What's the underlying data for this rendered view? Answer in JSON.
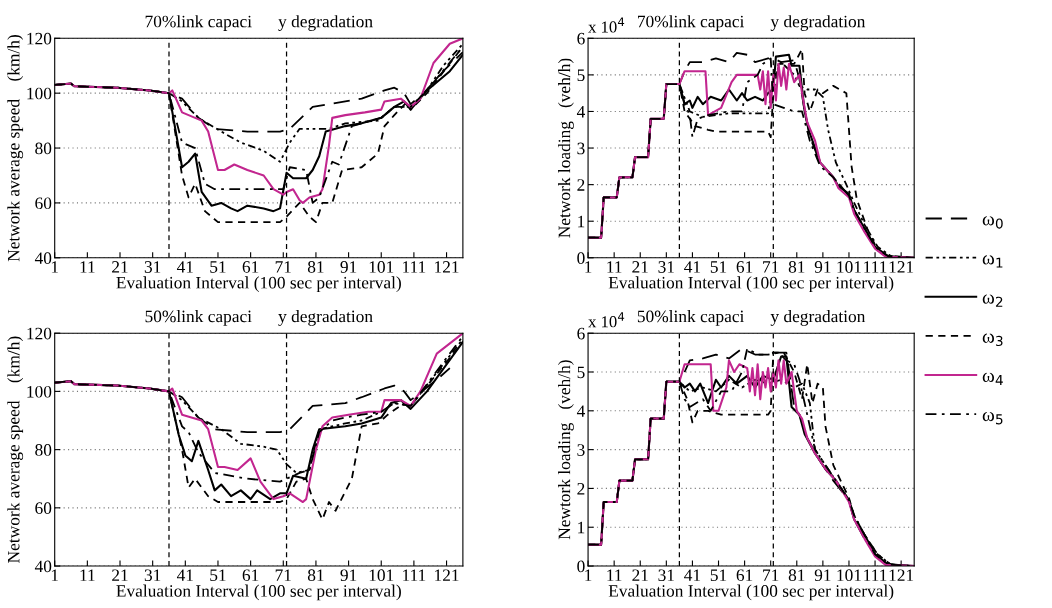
{
  "chart_data": [
    {
      "type": "line",
      "title": "70%link capaci      y degradation",
      "xlabel": "Evaluation Interval (100 sec per interval)",
      "ylabel": "Network average speed    (km/h)",
      "xlim": [
        1,
        126
      ],
      "xticks": [
        1,
        11,
        21,
        31,
        41,
        51,
        61,
        71,
        81,
        91,
        101,
        111,
        121
      ],
      "ylim": [
        40,
        120
      ],
      "yticks": [
        40,
        60,
        80,
        100,
        120
      ],
      "grid": "y",
      "legend": false,
      "ref_lines": [
        {
          "axis": "x",
          "value": 36,
          "color": "#000000",
          "line_style": "dashed"
        },
        {
          "axis": "x",
          "value": 72,
          "color": "#000000",
          "line_style": "dashed"
        }
      ],
      "series": [
        {
          "color": "#000000",
          "line_style": "longdash",
          "x": [
            1,
            6,
            7,
            20,
            30,
            36,
            40,
            45,
            50,
            60,
            70,
            73,
            80,
            90,
            95,
            102,
            105,
            108,
            110,
            114,
            120,
            126
          ],
          "values": [
            103,
            103.5,
            102.5,
            102,
            101,
            100,
            98,
            91,
            87,
            86,
            86,
            87,
            95,
            97,
            98,
            101,
            102,
            100,
            96,
            100,
            108,
            115
          ]
        },
        {
          "color": "#000000",
          "line_style": "dashdotdot",
          "x": [
            1,
            6,
            7,
            20,
            30,
            36,
            40,
            45,
            52,
            58,
            65,
            70,
            73,
            76,
            85,
            90,
            100,
            105,
            110,
            115,
            120,
            126
          ],
          "values": [
            103,
            103.5,
            102.5,
            102,
            101,
            100,
            97,
            91,
            86,
            82,
            79,
            75,
            82,
            87,
            87,
            89,
            90,
            95,
            95,
            101,
            110,
            118
          ]
        },
        {
          "color": "#000000",
          "line_style": "solid",
          "x": [
            1,
            6,
            7,
            20,
            30,
            36,
            40,
            42,
            44,
            46,
            49,
            52,
            55,
            57,
            60,
            65,
            68,
            70,
            72,
            74,
            78,
            80,
            82,
            84,
            90,
            95,
            101,
            105,
            108,
            110,
            115,
            122,
            126
          ],
          "values": [
            103,
            103.5,
            102.5,
            102,
            101,
            100,
            73,
            75,
            78,
            64,
            59,
            60,
            58,
            57,
            59,
            58,
            57,
            58,
            71,
            69,
            69,
            72,
            77,
            86,
            88,
            89,
            91,
            95,
            97,
            94,
            101,
            108,
            114
          ]
        },
        {
          "color": "#000000",
          "line_style": "dashed",
          "x": [
            1,
            6,
            7,
            20,
            30,
            36,
            40,
            42,
            44,
            47,
            51,
            70,
            72,
            76,
            79,
            81,
            83,
            86,
            89,
            95,
            100,
            102,
            105,
            109,
            110,
            115,
            126
          ],
          "values": [
            103,
            103.5,
            102.5,
            102,
            101,
            100,
            70,
            62,
            67,
            57,
            53,
            53,
            55,
            60,
            55,
            53,
            60,
            60,
            72,
            73,
            78,
            88,
            92,
            97,
            94,
            100,
            117
          ]
        },
        {
          "color": "#c2268f",
          "line_style": "solid",
          "x": [
            1,
            6,
            7,
            20,
            30,
            36,
            37,
            40,
            46,
            48,
            51,
            53,
            56,
            60,
            65,
            68,
            71,
            72,
            74,
            76,
            77,
            79,
            82,
            83,
            85,
            86,
            90,
            96,
            101,
            102,
            107,
            110,
            113,
            117,
            122,
            126
          ],
          "values": [
            103,
            103.5,
            102.5,
            102,
            101,
            100,
            101,
            93,
            90,
            86,
            72,
            72,
            74,
            72,
            70,
            65,
            63,
            64,
            65,
            61,
            60,
            62,
            63,
            65,
            81,
            91,
            92,
            93,
            94,
            97,
            98,
            95,
            98,
            111,
            118,
            120
          ]
        },
        {
          "color": "#000000",
          "line_style": "dashdot",
          "x": [
            1,
            6,
            7,
            20,
            30,
            36,
            40,
            44,
            47,
            50,
            71,
            73,
            78,
            80,
            82,
            86,
            88,
            92,
            101,
            105,
            110,
            115,
            126
          ],
          "values": [
            103,
            103.5,
            102.5,
            102,
            101,
            100,
            82,
            80,
            67,
            65,
            65,
            73,
            72,
            60,
            62,
            75,
            74,
            88,
            91,
            95,
            95,
            101,
            117
          ]
        }
      ]
    },
    {
      "type": "line",
      "title": "70%link capaci      y degradation",
      "xlabel": "Evaluation Interval (100 sec per interval)",
      "ylabel": "Network loading   (veh/h)",
      "annotations": [
        "x 10$^{4}$"
      ],
      "xlim": [
        1,
        126
      ],
      "xticks": [
        1,
        11,
        21,
        31,
        41,
        51,
        61,
        71,
        81,
        91,
        101,
        111,
        121
      ],
      "ylim": [
        0,
        6
      ],
      "yticks": [
        0,
        1,
        2,
        3,
        4,
        5,
        6
      ],
      "grid": "y",
      "legend": "right",
      "ref_lines": [
        {
          "axis": "x",
          "value": 36,
          "color": "#000000",
          "line_style": "dashed"
        },
        {
          "axis": "x",
          "value": 72,
          "color": "#000000",
          "line_style": "dashed"
        }
      ],
      "series": [
        {
          "name": "ω$_{0}$",
          "color": "#000000",
          "line_style": "longdash",
          "x": [
            1,
            6,
            7,
            12,
            13,
            18,
            19,
            24,
            25,
            30,
            31,
            36,
            38,
            40,
            45,
            50,
            55,
            58,
            62,
            65,
            70,
            72,
            75,
            80,
            82,
            84,
            86,
            90,
            95,
            101,
            103,
            107,
            111,
            116,
            126
          ],
          "values": [
            0.55,
            0.55,
            1.65,
            1.65,
            2.2,
            2.2,
            2.75,
            2.75,
            3.8,
            3.8,
            4.75,
            4.75,
            5.1,
            5.35,
            5.35,
            5.45,
            5.35,
            5.6,
            5.55,
            5.35,
            5.45,
            5.45,
            5.35,
            5.4,
            4.9,
            4.0,
            3.3,
            2.6,
            2.2,
            1.7,
            1.3,
            0.8,
            0.3,
            0.05,
            0
          ]
        },
        {
          "name": "ω$_{1}$",
          "color": "#000000",
          "line_style": "dashdotdot",
          "x": [
            1,
            6,
            7,
            12,
            13,
            18,
            19,
            24,
            25,
            30,
            31,
            36,
            40,
            45,
            55,
            70,
            72,
            75,
            80,
            82,
            85,
            88,
            91,
            93,
            96,
            100,
            103,
            107,
            112,
            117,
            126
          ],
          "values": [
            0.55,
            0.55,
            1.65,
            1.65,
            2.2,
            2.2,
            2.75,
            2.75,
            3.8,
            3.8,
            4.75,
            4.75,
            4.0,
            3.85,
            3.95,
            3.95,
            4.9,
            5.35,
            5.0,
            4.7,
            4.6,
            4.6,
            4.4,
            3.5,
            2.6,
            2.0,
            1.5,
            0.9,
            0.3,
            0.05,
            0
          ]
        },
        {
          "name": "ω$_{2}$",
          "color": "#000000",
          "line_style": "solid",
          "x": [
            1,
            6,
            7,
            12,
            13,
            18,
            19,
            24,
            25,
            30,
            31,
            36,
            38,
            40,
            41,
            43,
            45,
            48,
            52,
            55,
            58,
            60,
            62,
            65,
            68,
            70,
            72,
            73,
            78,
            79,
            82,
            84,
            86,
            90,
            95,
            97,
            101,
            103,
            107,
            111,
            115,
            126
          ],
          "values": [
            0.55,
            0.55,
            1.65,
            1.65,
            2.2,
            2.2,
            2.75,
            2.75,
            3.8,
            3.8,
            4.75,
            4.75,
            4.2,
            4.3,
            4.1,
            4.4,
            4.2,
            4.4,
            4.3,
            4.6,
            4.3,
            4.5,
            4.3,
            4.4,
            4.3,
            4.5,
            4.6,
            5.5,
            5.55,
            5.25,
            5.25,
            4.0,
            3.4,
            2.6,
            2.2,
            1.95,
            1.75,
            1.3,
            0.8,
            0.3,
            0.05,
            0
          ]
        },
        {
          "name": "ω$_{3}$",
          "color": "#000000",
          "line_style": "dashed",
          "x": [
            1,
            6,
            7,
            12,
            13,
            18,
            19,
            24,
            25,
            30,
            31,
            36,
            38,
            42,
            47,
            50,
            70,
            71,
            72,
            74,
            80,
            83,
            84,
            86,
            89,
            91,
            95,
            100,
            102,
            104,
            108,
            112,
            118,
            126
          ],
          "values": [
            0.55,
            0.55,
            1.65,
            1.65,
            2.2,
            2.2,
            2.75,
            2.75,
            3.8,
            3.8,
            4.75,
            4.75,
            4.0,
            3.6,
            3.5,
            3.45,
            3.45,
            3.3,
            4.5,
            5.3,
            5.3,
            5.7,
            4.5,
            4.0,
            4.6,
            4.5,
            4.7,
            4.5,
            2.5,
            1.6,
            0.8,
            0.2,
            0.02,
            0
          ]
        },
        {
          "name": "ω$_{4}$",
          "color": "#c2268f",
          "line_style": "solid",
          "x": [
            1,
            6,
            7,
            12,
            13,
            18,
            19,
            24,
            25,
            30,
            31,
            36,
            38,
            46,
            47,
            52,
            56,
            58,
            66,
            67,
            68,
            69,
            70,
            71,
            72,
            73,
            74,
            75,
            76,
            77,
            78,
            80,
            82,
            83,
            85,
            88,
            90,
            95,
            97,
            101,
            103,
            107,
            111,
            115,
            126
          ],
          "values": [
            0.55,
            0.55,
            1.65,
            1.65,
            2.2,
            2.2,
            2.75,
            2.75,
            3.8,
            3.8,
            4.75,
            4.75,
            5.1,
            5.1,
            3.9,
            4.1,
            4.8,
            5.0,
            5.0,
            4.6,
            5.1,
            4.2,
            5.1,
            4.1,
            5.0,
            4.3,
            5.3,
            4.7,
            5.2,
            4.6,
            5.3,
            4.8,
            5.0,
            4.5,
            3.7,
            3.2,
            2.6,
            2.2,
            1.9,
            1.65,
            1.2,
            0.7,
            0.25,
            0.03,
            0
          ]
        },
        {
          "name": "ω$_{5}$",
          "color": "#000000",
          "line_style": "dashdot",
          "x": [
            1,
            6,
            7,
            12,
            13,
            18,
            19,
            24,
            25,
            30,
            31,
            36,
            38,
            40,
            41,
            43,
            47,
            55,
            60,
            62,
            66,
            68,
            71,
            72,
            76,
            80,
            83,
            86,
            90,
            95,
            101,
            103,
            107,
            111,
            116,
            126
          ],
          "values": [
            0.55,
            0.55,
            1.65,
            1.65,
            2.2,
            2.2,
            2.75,
            2.75,
            3.8,
            3.8,
            4.75,
            4.75,
            4.2,
            3.9,
            3.3,
            3.8,
            3.9,
            4.0,
            4.0,
            4.8,
            5.0,
            5.3,
            5.45,
            4.2,
            4.1,
            4.0,
            4.0,
            3.2,
            2.5,
            2.2,
            1.7,
            1.3,
            0.8,
            0.3,
            0.04,
            0
          ]
        }
      ]
    },
    {
      "type": "line",
      "title": "50%link capaci      y degradation",
      "xlabel": "Evaluation Interval (100 sec per interval)",
      "ylabel": "Network average speed    (km/h)",
      "xlim": [
        1,
        126
      ],
      "xticks": [
        1,
        11,
        21,
        31,
        41,
        51,
        61,
        71,
        81,
        91,
        101,
        111,
        121
      ],
      "ylim": [
        40,
        120
      ],
      "yticks": [
        40,
        60,
        80,
        100,
        120
      ],
      "grid": "y",
      "legend": false,
      "ref_lines": [
        {
          "axis": "x",
          "value": 36,
          "color": "#000000",
          "line_style": "dashed"
        },
        {
          "axis": "x",
          "value": 72,
          "color": "#000000",
          "line_style": "dashed"
        }
      ],
      "series": [
        {
          "color": "#000000",
          "line_style": "longdash",
          "x": [
            1,
            6,
            7,
            20,
            30,
            36,
            40,
            45,
            50,
            60,
            70,
            73,
            80,
            90,
            95,
            102,
            105,
            108,
            110,
            118,
            122
          ],
          "values": [
            103,
            103.5,
            102.5,
            102,
            101,
            100,
            98,
            91,
            87,
            86,
            86,
            87,
            95,
            96,
            98,
            101,
            102,
            100,
            97,
            104,
            108
          ]
        },
        {
          "color": "#000000",
          "line_style": "dashdotdot",
          "x": [
            1,
            6,
            7,
            20,
            30,
            36,
            40,
            45,
            52,
            58,
            65,
            69,
            72,
            75,
            79,
            82,
            90,
            95,
            101,
            105,
            110,
            126
          ],
          "values": [
            103,
            103.5,
            102.5,
            102,
            101,
            100,
            97,
            91,
            87,
            82,
            81,
            80,
            75,
            72,
            73,
            87,
            89,
            90,
            93,
            96,
            95,
            118
          ]
        },
        {
          "color": "#000000",
          "line_style": "solid",
          "x": [
            1,
            6,
            7,
            20,
            30,
            36,
            39,
            41,
            43,
            45,
            48,
            50,
            52,
            55,
            58,
            61,
            63,
            67,
            70,
            72,
            74,
            78,
            80,
            82,
            90,
            95,
            101,
            104,
            107,
            110,
            115,
            126
          ],
          "values": [
            103,
            103.5,
            102.5,
            102,
            101,
            100,
            85,
            78,
            76,
            83,
            73,
            66,
            68,
            64,
            66,
            63,
            66,
            63,
            65,
            65,
            71,
            70,
            80,
            87,
            88,
            89,
            91,
            96,
            97,
            94,
            100,
            117
          ]
        },
        {
          "color": "#000000",
          "line_style": "dashed",
          "x": [
            1,
            6,
            7,
            20,
            30,
            36,
            40,
            42,
            44,
            48,
            51,
            70,
            72,
            75,
            78,
            80,
            83,
            85,
            87,
            92,
            95,
            100,
            103,
            108,
            110,
            126
          ],
          "values": [
            103,
            103.5,
            102.5,
            102,
            101,
            100,
            80,
            67,
            70,
            64,
            62,
            62,
            63,
            69,
            70,
            63,
            56,
            62,
            59,
            70,
            88,
            89,
            92,
            96,
            95,
            117
          ]
        },
        {
          "color": "#c2268f",
          "line_style": "solid",
          "x": [
            1,
            6,
            7,
            20,
            30,
            36,
            37,
            40,
            46,
            48,
            51,
            53,
            57,
            61,
            64,
            68,
            71,
            73,
            77,
            78,
            81,
            83,
            86,
            91,
            97,
            101,
            102,
            107,
            110,
            113,
            118,
            126
          ],
          "values": [
            103,
            103.5,
            102.5,
            102,
            101,
            100,
            101,
            92,
            90,
            87,
            74,
            74,
            73,
            77,
            69,
            63,
            64,
            65,
            62,
            63,
            80,
            88,
            91,
            92,
            93,
            93,
            97,
            97,
            95,
            100,
            113,
            120
          ]
        },
        {
          "color": "#000000",
          "line_style": "dashdot",
          "x": [
            1,
            6,
            7,
            20,
            30,
            36,
            40,
            42,
            45,
            50,
            60,
            70,
            72,
            76,
            79,
            82,
            86,
            90,
            95,
            101,
            105,
            110,
            126
          ],
          "values": [
            103,
            103.5,
            102.5,
            102,
            101,
            100,
            88,
            86,
            79,
            72,
            70,
            69,
            70,
            72,
            73,
            86,
            90,
            91,
            92,
            93,
            96,
            95,
            119
          ]
        }
      ]
    },
    {
      "type": "line",
      "title": "50%link capaci      y degradation",
      "xlabel": "Evaluation Interval (100 sec per interval)",
      "ylabel": "Newtork loading   (veh/h)",
      "annotations": [
        "x 10$^{4}$"
      ],
      "xlim": [
        1,
        126
      ],
      "xticks": [
        1,
        11,
        21,
        31,
        41,
        51,
        61,
        71,
        81,
        91,
        101,
        111,
        121
      ],
      "ylim": [
        0,
        6
      ],
      "yticks": [
        0,
        1,
        2,
        3,
        4,
        5,
        6
      ],
      "grid": "y",
      "legend": false,
      "ref_lines": [
        {
          "axis": "x",
          "value": 36,
          "color": "#000000",
          "line_style": "dashed"
        },
        {
          "axis": "x",
          "value": 72,
          "color": "#000000",
          "line_style": "dashed"
        }
      ],
      "series": [
        {
          "color": "#000000",
          "line_style": "longdash",
          "x": [
            1,
            6,
            7,
            12,
            13,
            18,
            19,
            24,
            25,
            30,
            31,
            36,
            38,
            40,
            45,
            50,
            55,
            60,
            65,
            70,
            72,
            77,
            80,
            82,
            85,
            90,
            95,
            101,
            103,
            107,
            111,
            116,
            126
          ],
          "values": [
            0.55,
            0.55,
            1.65,
            1.65,
            2.2,
            2.2,
            2.75,
            2.75,
            3.8,
            3.8,
            4.75,
            4.75,
            5.0,
            5.3,
            5.35,
            5.45,
            5.35,
            5.6,
            5.45,
            5.45,
            5.5,
            5.5,
            4.1,
            3.9,
            3.3,
            2.7,
            2.2,
            1.7,
            1.2,
            0.7,
            0.3,
            0.05,
            0
          ]
        },
        {
          "color": "#000000",
          "line_style": "dashdotdot",
          "x": [
            1,
            6,
            7,
            12,
            13,
            18,
            19,
            24,
            25,
            30,
            31,
            36,
            40,
            45,
            50,
            55,
            60,
            65,
            70,
            75,
            80,
            83,
            86,
            88,
            92,
            96,
            101,
            103,
            107,
            112,
            117,
            126
          ],
          "values": [
            0.55,
            0.55,
            1.65,
            1.65,
            2.2,
            2.2,
            2.75,
            2.75,
            3.8,
            3.8,
            4.75,
            4.75,
            4.5,
            4.6,
            4.5,
            4.8,
            4.6,
            4.8,
            4.7,
            4.8,
            4.6,
            4.7,
            4.2,
            3.0,
            2.6,
            2.2,
            1.7,
            1.3,
            0.8,
            0.3,
            0.04,
            0
          ]
        },
        {
          "color": "#000000",
          "line_style": "solid",
          "x": [
            1,
            6,
            7,
            12,
            13,
            18,
            19,
            24,
            25,
            30,
            31,
            36,
            38,
            40,
            42,
            44,
            47,
            50,
            52,
            55,
            58,
            62,
            65,
            68,
            72,
            75,
            77,
            79,
            82,
            84,
            88,
            92,
            96,
            101,
            103,
            107,
            111,
            116,
            126
          ],
          "values": [
            0.55,
            0.55,
            1.65,
            1.65,
            2.2,
            2.2,
            2.75,
            2.75,
            3.8,
            3.8,
            4.75,
            4.75,
            4.6,
            4.7,
            4.5,
            4.7,
            4.2,
            4.8,
            4.6,
            4.9,
            4.7,
            4.9,
            4.6,
            4.9,
            4.8,
            5.4,
            5.4,
            4.1,
            3.9,
            3.4,
            2.9,
            2.5,
            2.2,
            1.7,
            1.2,
            0.8,
            0.3,
            0.04,
            0
          ]
        },
        {
          "color": "#000000",
          "line_style": "dashed",
          "x": [
            1,
            6,
            7,
            12,
            13,
            18,
            19,
            24,
            25,
            30,
            31,
            36,
            39,
            41,
            43,
            47,
            52,
            60,
            70,
            71,
            72,
            76,
            80,
            83,
            85,
            87,
            89,
            91,
            92,
            95,
            101,
            103,
            107,
            112,
            117,
            126
          ],
          "values": [
            0.55,
            0.55,
            1.65,
            1.65,
            2.2,
            2.2,
            2.75,
            2.75,
            3.8,
            3.8,
            4.75,
            4.75,
            4.3,
            3.7,
            4.0,
            4.0,
            3.9,
            3.9,
            3.9,
            4.0,
            5.5,
            5.5,
            5.0,
            4.3,
            5.2,
            4.2,
            4.7,
            4.6,
            3.6,
            2.6,
            1.75,
            1.3,
            0.8,
            0.3,
            0.04,
            0
          ]
        },
        {
          "color": "#c2268f",
          "line_style": "solid",
          "x": [
            1,
            6,
            7,
            12,
            13,
            18,
            19,
            24,
            25,
            30,
            31,
            36,
            38,
            48,
            49,
            51,
            54,
            55,
            57,
            59,
            62,
            63,
            64,
            65,
            66,
            67,
            68,
            69,
            70,
            71,
            72,
            73,
            74,
            75,
            76,
            77,
            79,
            81,
            83,
            85,
            88,
            92,
            96,
            101,
            103,
            107,
            111,
            115,
            126
          ],
          "values": [
            0.55,
            0.55,
            1.65,
            1.65,
            2.2,
            2.2,
            2.75,
            2.75,
            3.8,
            3.8,
            4.75,
            4.75,
            5.2,
            5.2,
            4.0,
            4.0,
            4.6,
            5.3,
            5.0,
            5.2,
            5.1,
            4.5,
            5.1,
            4.4,
            5.2,
            4.3,
            5.0,
            4.6,
            5.1,
            4.5,
            5.0,
            4.6,
            5.3,
            4.7,
            5.3,
            4.7,
            5.0,
            4.0,
            3.8,
            3.3,
            2.9,
            2.5,
            2.2,
            1.65,
            1.2,
            0.7,
            0.25,
            0.03,
            0
          ]
        },
        {
          "color": "#000000",
          "line_style": "dashdot",
          "x": [
            1,
            6,
            7,
            12,
            13,
            18,
            19,
            24,
            25,
            30,
            31,
            36,
            38,
            40,
            45,
            48,
            52,
            56,
            60,
            62,
            66,
            70,
            74,
            77,
            80,
            82,
            84,
            88,
            92,
            96,
            101,
            103,
            107,
            111,
            116,
            126
          ],
          "values": [
            0.55,
            0.55,
            1.65,
            1.65,
            2.2,
            2.2,
            2.75,
            2.75,
            3.8,
            3.8,
            4.75,
            4.75,
            4.3,
            4.1,
            4.3,
            4.0,
            4.5,
            4.5,
            5.0,
            5.6,
            5.45,
            5.45,
            5.5,
            5.3,
            5.2,
            4.8,
            4.2,
            3.0,
            2.6,
            2.2,
            1.7,
            1.3,
            0.8,
            0.3,
            0.04,
            0
          ]
        }
      ]
    }
  ]
}
